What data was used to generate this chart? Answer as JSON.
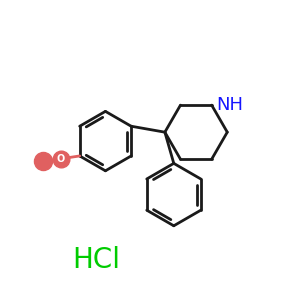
{
  "background_color": "#ffffff",
  "bond_color": "#1a1a1a",
  "nitrogen_color": "#1515ff",
  "oxygen_color": "#e06060",
  "hcl_color": "#00cc00",
  "line_width": 2.0,
  "hcl_text": "HCl",
  "hcl_fontsize": 20,
  "nh_fontsize": 13,
  "o_fontsize": 11
}
